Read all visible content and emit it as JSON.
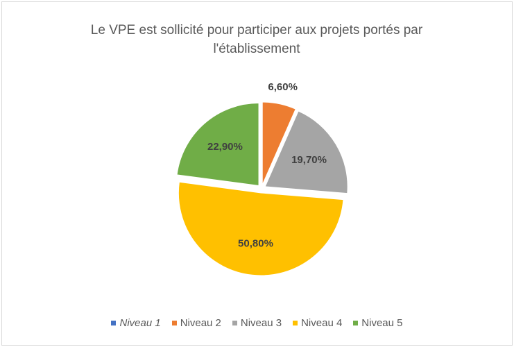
{
  "chart_data": {
    "type": "pie",
    "title": "Le VPE est sollicité pour participer aux projets portés par l'établissement",
    "categories": [
      "Niveau 1",
      "Niveau 2",
      "Niveau 3",
      "Niveau 4",
      "Niveau 5"
    ],
    "values": [
      0,
      6.6,
      19.7,
      50.8,
      22.9
    ],
    "value_labels": [
      null,
      "6,60%",
      "19,70%",
      "50,80%",
      "22,90%"
    ],
    "colors": [
      "#4472c4",
      "#ed7d31",
      "#a5a5a5",
      "#ffc000",
      "#70ad47"
    ],
    "legend": "bottom"
  }
}
